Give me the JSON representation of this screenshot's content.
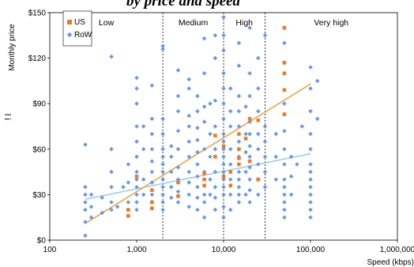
{
  "chart_data": {
    "type": "scatter",
    "title": "by price and speed",
    "ylabel": "Monthly price",
    "xlabel": "Speed (kbps)",
    "side_text": "l i",
    "x_scale": "log",
    "xlim": [
      100,
      1000000
    ],
    "ylim": [
      0,
      150
    ],
    "x_ticks": [
      {
        "value": 100,
        "label": "100"
      },
      {
        "value": 1000,
        "label": "1,000"
      },
      {
        "value": 10000,
        "label": "10,000"
      },
      {
        "value": 100000,
        "label": "100,000"
      },
      {
        "value": 1000000,
        "label": "1,000,000"
      }
    ],
    "y_ticks": [
      {
        "value": 0,
        "label": "$0"
      },
      {
        "value": 30,
        "label": "$30"
      },
      {
        "value": 60,
        "label": "$60"
      },
      {
        "value": 90,
        "label": "$90"
      },
      {
        "value": 120,
        "label": "$120"
      },
      {
        "value": 150,
        "label": "$150"
      }
    ],
    "bands": [
      {
        "label": "Low",
        "from": 100,
        "to": 2000
      },
      {
        "label": "Medium",
        "from": 2000,
        "to": 10000
      },
      {
        "label": "High",
        "from": 10000,
        "to": 30000
      },
      {
        "label": "Very high",
        "from": 30000,
        "to": 1000000
      }
    ],
    "dividers": [
      2000,
      10000,
      30000
    ],
    "legend": {
      "position": "top-left",
      "entries": [
        "US",
        "RoW"
      ]
    },
    "colors": {
      "US": "#f07a22",
      "RoW": "#6699ee",
      "US_trend": "#f5a33a",
      "RoW_trend": "#9ccbf5"
    },
    "series": [
      {
        "name": "US",
        "marker": "square",
        "points": [
          [
            800,
            20
          ],
          [
            800,
            16
          ],
          [
            1000,
            42
          ],
          [
            1500,
            33
          ],
          [
            1500,
            25
          ],
          [
            1500,
            21
          ],
          [
            3000,
            38
          ],
          [
            3000,
            29
          ],
          [
            6000,
            40
          ],
          [
            6000,
            36
          ],
          [
            6000,
            44
          ],
          [
            8000,
            69
          ],
          [
            8000,
            55
          ],
          [
            10000,
            62
          ],
          [
            10000,
            42
          ],
          [
            12000,
            36
          ],
          [
            12000,
            45
          ],
          [
            15000,
            70
          ],
          [
            15000,
            60
          ],
          [
            15000,
            54
          ],
          [
            15000,
            50
          ],
          [
            18000,
            67
          ],
          [
            20000,
            80
          ],
          [
            20000,
            52
          ],
          [
            25000,
            79
          ],
          [
            25000,
            40
          ],
          [
            50000,
            140
          ],
          [
            50000,
            117
          ],
          [
            50000,
            110
          ],
          [
            50000,
            99
          ],
          [
            50000,
            83
          ]
        ],
        "trend": {
          "from": [
            256,
            11
          ],
          "to": [
            100000,
            103
          ]
        }
      },
      {
        "name": "RoW",
        "marker": "diamond",
        "points": [
          [
            256,
            3
          ],
          [
            256,
            12
          ],
          [
            256,
            20
          ],
          [
            256,
            25
          ],
          [
            256,
            30
          ],
          [
            256,
            35
          ],
          [
            256,
            63
          ],
          [
            300,
            15
          ],
          [
            300,
            22
          ],
          [
            300,
            30
          ],
          [
            400,
            18
          ],
          [
            400,
            28
          ],
          [
            512,
            20
          ],
          [
            512,
            25
          ],
          [
            512,
            35
          ],
          [
            512,
            45
          ],
          [
            512,
            60
          ],
          [
            512,
            121
          ],
          [
            600,
            22
          ],
          [
            700,
            35
          ],
          [
            800,
            25
          ],
          [
            800,
            38
          ],
          [
            800,
            50
          ],
          [
            1000,
            20
          ],
          [
            1000,
            25
          ],
          [
            1000,
            30
          ],
          [
            1000,
            35
          ],
          [
            1000,
            40
          ],
          [
            1000,
            45
          ],
          [
            1000,
            55
          ],
          [
            1000,
            65
          ],
          [
            1000,
            75
          ],
          [
            1000,
            90
          ],
          [
            1000,
            100
          ],
          [
            1000,
            107
          ],
          [
            1200,
            30
          ],
          [
            1200,
            40
          ],
          [
            1200,
            60
          ],
          [
            1200,
            75
          ],
          [
            1500,
            25
          ],
          [
            1500,
            30
          ],
          [
            1500,
            38
          ],
          [
            1500,
            45
          ],
          [
            1500,
            52
          ],
          [
            1500,
            60
          ],
          [
            1500,
            70
          ],
          [
            1500,
            80
          ],
          [
            1500,
            102
          ],
          [
            2000,
            20
          ],
          [
            2000,
            25
          ],
          [
            2000,
            30
          ],
          [
            2000,
            35
          ],
          [
            2000,
            40
          ],
          [
            2000,
            45
          ],
          [
            2000,
            50
          ],
          [
            2000,
            55
          ],
          [
            2000,
            60
          ],
          [
            2000,
            70
          ],
          [
            2000,
            80
          ],
          [
            2000,
            126
          ],
          [
            2000,
            128
          ],
          [
            2500,
            28
          ],
          [
            2500,
            35
          ],
          [
            2500,
            45
          ],
          [
            2500,
            55
          ],
          [
            2500,
            62
          ],
          [
            3000,
            25
          ],
          [
            3000,
            32
          ],
          [
            3000,
            40
          ],
          [
            3000,
            48
          ],
          [
            3000,
            60
          ],
          [
            3000,
            72
          ],
          [
            3000,
            85
          ],
          [
            3000,
            95
          ],
          [
            3000,
            112
          ],
          [
            4000,
            22
          ],
          [
            4000,
            30
          ],
          [
            4000,
            38
          ],
          [
            4000,
            45
          ],
          [
            4000,
            55
          ],
          [
            4000,
            65
          ],
          [
            4000,
            75
          ],
          [
            4000,
            82
          ],
          [
            4000,
            100
          ],
          [
            4000,
            106
          ],
          [
            5000,
            20
          ],
          [
            5000,
            28
          ],
          [
            5000,
            35
          ],
          [
            5000,
            42
          ],
          [
            5000,
            50
          ],
          [
            5000,
            58
          ],
          [
            5000,
            66
          ],
          [
            5000,
            74
          ],
          [
            5000,
            85
          ],
          [
            5000,
            95
          ],
          [
            6000,
            15
          ],
          [
            6000,
            25
          ],
          [
            6000,
            30
          ],
          [
            6000,
            45
          ],
          [
            6000,
            60
          ],
          [
            6000,
            78
          ],
          [
            6000,
            88
          ],
          [
            6000,
            110
          ],
          [
            6000,
            133
          ],
          [
            7000,
            30
          ],
          [
            7000,
            40
          ],
          [
            7000,
            55
          ],
          [
            7000,
            70
          ],
          [
            7000,
            90
          ],
          [
            8000,
            20
          ],
          [
            8000,
            28
          ],
          [
            8000,
            35
          ],
          [
            8000,
            45
          ],
          [
            8000,
            60
          ],
          [
            8000,
            75
          ],
          [
            8000,
            92
          ],
          [
            8000,
            120
          ],
          [
            8000,
            135
          ],
          [
            10000,
            15
          ],
          [
            10000,
            22
          ],
          [
            10000,
            30
          ],
          [
            10000,
            35
          ],
          [
            10000,
            40
          ],
          [
            10000,
            45
          ],
          [
            10000,
            50
          ],
          [
            10000,
            55
          ],
          [
            10000,
            60
          ],
          [
            10000,
            65
          ],
          [
            10000,
            70
          ],
          [
            10000,
            80
          ],
          [
            10000,
            90
          ],
          [
            10000,
            100
          ],
          [
            10000,
            110
          ],
          [
            10000,
            125
          ],
          [
            10000,
            135
          ],
          [
            10000,
            147
          ],
          [
            12000,
            20
          ],
          [
            12000,
            30
          ],
          [
            12000,
            40
          ],
          [
            12000,
            50
          ],
          [
            12000,
            60
          ],
          [
            12000,
            75
          ],
          [
            12000,
            85
          ],
          [
            12000,
            100
          ],
          [
            15000,
            25
          ],
          [
            15000,
            30
          ],
          [
            15000,
            35
          ],
          [
            15000,
            40
          ],
          [
            15000,
            45
          ],
          [
            15000,
            55
          ],
          [
            15000,
            65
          ],
          [
            15000,
            75
          ],
          [
            15000,
            85
          ],
          [
            15000,
            95
          ],
          [
            15000,
            115
          ],
          [
            15000,
            130
          ],
          [
            18000,
            30
          ],
          [
            18000,
            45
          ],
          [
            18000,
            58
          ],
          [
            18000,
            70
          ],
          [
            18000,
            88
          ],
          [
            20000,
            25
          ],
          [
            20000,
            33
          ],
          [
            20000,
            40
          ],
          [
            20000,
            48
          ],
          [
            20000,
            55
          ],
          [
            20000,
            62
          ],
          [
            20000,
            70
          ],
          [
            20000,
            78
          ],
          [
            20000,
            95
          ],
          [
            20000,
            110
          ],
          [
            20000,
            140
          ],
          [
            25000,
            30
          ],
          [
            25000,
            40
          ],
          [
            25000,
            50
          ],
          [
            25000,
            60
          ],
          [
            25000,
            70
          ],
          [
            25000,
            85
          ],
          [
            25000,
            100
          ],
          [
            25000,
            120
          ],
          [
            30000,
            35
          ],
          [
            30000,
            45
          ],
          [
            30000,
            55
          ],
          [
            30000,
            65
          ],
          [
            30000,
            75
          ],
          [
            30000,
            135
          ],
          [
            40000,
            40
          ],
          [
            40000,
            55
          ],
          [
            40000,
            70
          ],
          [
            50000,
            15
          ],
          [
            50000,
            20
          ],
          [
            50000,
            25
          ],
          [
            50000,
            30
          ],
          [
            50000,
            35
          ],
          [
            50000,
            40
          ],
          [
            50000,
            50
          ],
          [
            50000,
            60
          ],
          [
            50000,
            72
          ],
          [
            50000,
            90
          ],
          [
            50000,
            130
          ],
          [
            60000,
            30
          ],
          [
            60000,
            42
          ],
          [
            60000,
            55
          ],
          [
            70000,
            50
          ],
          [
            80000,
            75
          ],
          [
            100000,
            15
          ],
          [
            100000,
            20
          ],
          [
            100000,
            25
          ],
          [
            100000,
            30
          ],
          [
            100000,
            35
          ],
          [
            100000,
            40
          ],
          [
            100000,
            45
          ],
          [
            100000,
            50
          ],
          [
            100000,
            60
          ],
          [
            100000,
            70
          ],
          [
            100000,
            85
          ],
          [
            100000,
            100
          ],
          [
            100000,
            114
          ],
          [
            120000,
            80
          ],
          [
            120000,
            105
          ]
        ],
        "trend": {
          "from": [
            256,
            27
          ],
          "to": [
            100000,
            57
          ]
        }
      }
    ]
  }
}
